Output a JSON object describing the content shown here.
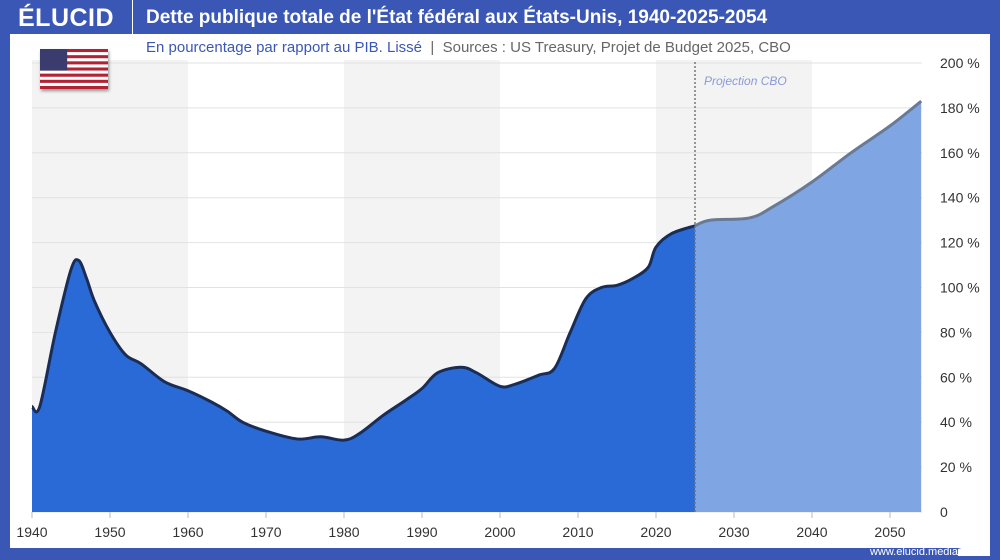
{
  "header": {
    "logo": "ÉLUCID",
    "title": "Dette publique totale de l'État fédéral aux États-Unis, 1940-2025-2054"
  },
  "subtitle": {
    "main": "En pourcentage par rapport au PIB. Lissé",
    "sources": "Sources : US Treasury, Projet de Budget 2025, CBO"
  },
  "footer": {
    "site": "www.elucid.media"
  },
  "colors": {
    "frame": "#3a57b5",
    "historical": "#2a6ad6",
    "projection": "#7fa6e3",
    "line": "#1c2d55",
    "projection_line": "#6b7a94"
  },
  "chart_data": {
    "type": "area",
    "title": "Dette publique totale de l'État fédéral aux États-Unis, 1940-2025-2054",
    "xlim": [
      1940,
      2054
    ],
    "ylim": [
      0,
      200
    ],
    "x_ticks": [
      1940,
      1950,
      1960,
      1970,
      1980,
      1990,
      2000,
      2010,
      2020,
      2030,
      2040,
      2050
    ],
    "y_ticks": [
      "0",
      "20 %",
      "40 %",
      "60 %",
      "80 %",
      "100 %",
      "120 %",
      "140 %",
      "160 %",
      "180 %",
      "200 %"
    ],
    "annotation": "Projection CBO",
    "projection_start": 2025,
    "historical": [
      [
        1940,
        47
      ],
      [
        1941,
        47
      ],
      [
        1943,
        80
      ],
      [
        1945,
        108
      ],
      [
        1946,
        112
      ],
      [
        1947,
        104
      ],
      [
        1948,
        94
      ],
      [
        1950,
        80
      ],
      [
        1952,
        70
      ],
      [
        1954,
        66
      ],
      [
        1957,
        58
      ],
      [
        1960,
        54
      ],
      [
        1963,
        49
      ],
      [
        1965,
        45
      ],
      [
        1967,
        40
      ],
      [
        1970,
        36
      ],
      [
        1974,
        32.5
      ],
      [
        1977,
        33.5
      ],
      [
        1980,
        32
      ],
      [
        1982,
        35
      ],
      [
        1985,
        43
      ],
      [
        1988,
        50
      ],
      [
        1990,
        55
      ],
      [
        1992,
        62
      ],
      [
        1995,
        64.5
      ],
      [
        1997,
        62
      ],
      [
        2000,
        56
      ],
      [
        2002,
        57
      ],
      [
        2005,
        61
      ],
      [
        2007,
        64
      ],
      [
        2009,
        80
      ],
      [
        2011,
        95
      ],
      [
        2013,
        100
      ],
      [
        2015,
        101
      ],
      [
        2017,
        104
      ],
      [
        2019,
        109
      ],
      [
        2020,
        118
      ],
      [
        2022,
        124
      ],
      [
        2025,
        127.5
      ]
    ],
    "projection": [
      [
        2025,
        127.5
      ],
      [
        2027,
        130
      ],
      [
        2032,
        131
      ],
      [
        2035,
        136
      ],
      [
        2040,
        147
      ],
      [
        2045,
        160
      ],
      [
        2050,
        172
      ],
      [
        2054,
        183
      ]
    ]
  }
}
